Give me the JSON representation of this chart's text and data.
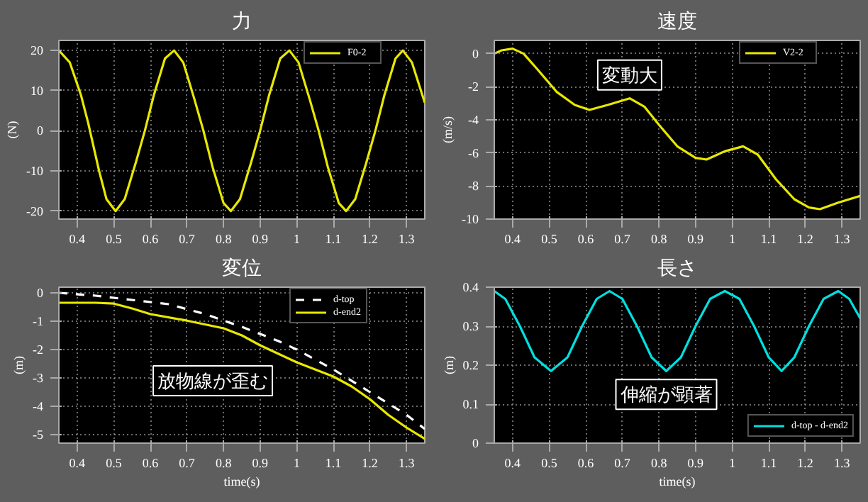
{
  "chart_data": [
    {
      "type": "line",
      "title": "力",
      "ylabel": "(N)",
      "xlim": [
        0.35,
        1.35
      ],
      "xticks": [
        0.4,
        0.5,
        0.6,
        0.7,
        0.8,
        0.9,
        1,
        1.1,
        1.2,
        1.3
      ],
      "ylim": [
        -22,
        22.5
      ],
      "yticks": [
        -20,
        -10,
        0,
        10,
        20
      ],
      "grid": true,
      "legend": "top right",
      "tick_labels": true,
      "series": [
        {
          "name": "F0-2",
          "color": "#e8e800",
          "x": [
            0.35,
            0.38,
            0.41,
            0.43,
            0.46,
            0.48,
            0.505,
            0.53,
            0.56,
            0.585,
            0.61,
            0.64,
            0.665,
            0.69,
            0.72,
            0.745,
            0.77,
            0.8,
            0.82,
            0.845,
            0.875,
            0.9,
            0.925,
            0.955,
            0.98,
            1.005,
            1.035,
            1.06,
            1.085,
            1.115,
            1.135,
            1.16,
            1.19,
            1.215,
            1.24,
            1.27,
            1.29,
            1.315,
            1.35
          ],
          "values": [
            20,
            17,
            9,
            2,
            -10,
            -17,
            -20,
            -17,
            -8,
            0,
            9,
            18,
            20,
            17,
            8,
            0,
            -9,
            -18,
            -20,
            -17,
            -8,
            0,
            9,
            18,
            20,
            17,
            8,
            0,
            -9,
            -18,
            -20,
            -17,
            -8,
            0,
            9,
            18,
            20,
            17,
            7
          ]
        }
      ]
    },
    {
      "type": "line",
      "title": "速度",
      "ylabel": "(m/s)",
      "xlim": [
        0.35,
        1.35
      ],
      "xticks": [
        0.4,
        0.5,
        0.6,
        0.7,
        0.8,
        0.9,
        1,
        1.1,
        1.2,
        1.3
      ],
      "ylim": [
        -10,
        0.8
      ],
      "yticks": [
        -10,
        -8,
        -6,
        -4,
        -2,
        0
      ],
      "grid": true,
      "legend": "top right",
      "annotations": [
        {
          "text": "変動大",
          "x": 0.72,
          "y": -2.7
        }
      ],
      "series": [
        {
          "name": "V2-2",
          "color": "#e8e800",
          "x": [
            0.35,
            0.37,
            0.4,
            0.43,
            0.47,
            0.52,
            0.57,
            0.61,
            0.66,
            0.72,
            0.76,
            0.8,
            0.85,
            0.9,
            0.93,
            0.98,
            1.03,
            1.07,
            1.12,
            1.17,
            1.21,
            1.24,
            1.29,
            1.35
          ],
          "values": [
            0,
            0.2,
            0.3,
            0,
            -1,
            -2.3,
            -3.1,
            -3.4,
            -3.1,
            -2.7,
            -3.2,
            -4.3,
            -5.6,
            -6.3,
            -6.4,
            -5.9,
            -5.6,
            -6.1,
            -7.6,
            -8.8,
            -9.3,
            -9.4,
            -9.0,
            -8.6
          ]
        }
      ]
    },
    {
      "type": "line",
      "title": "変位",
      "ylabel": "(m)",
      "xlabel": "time(s)",
      "xlim": [
        0.35,
        1.35
      ],
      "xticks": [
        0.4,
        0.5,
        0.6,
        0.7,
        0.8,
        0.9,
        1,
        1.1,
        1.2,
        1.3
      ],
      "ylim": [
        -5.3,
        0.2
      ],
      "yticks": [
        -5,
        -4,
        -3,
        -2,
        -1,
        0
      ],
      "grid": true,
      "legend": "top right",
      "annotations": [
        {
          "text": "放物線が歪む",
          "x": 0.98,
          "y": -2.4
        }
      ],
      "series": [
        {
          "name": "d-top",
          "color": "#ffffff",
          "line_style": "dashed",
          "x": [
            0.35,
            0.45,
            0.55,
            0.65,
            0.75,
            0.85,
            0.95,
            1.0,
            1.1,
            1.2,
            1.3,
            1.35
          ],
          "values": [
            0,
            -0.1,
            -0.25,
            -0.4,
            -0.75,
            -1.2,
            -1.7,
            -2.0,
            -2.7,
            -3.5,
            -4.3,
            -4.8
          ]
        },
        {
          "name": "d-end2",
          "color": "#e8e800",
          "line_style": "solid",
          "x": [
            0.35,
            0.45,
            0.5,
            0.55,
            0.6,
            0.7,
            0.8,
            0.85,
            0.9,
            0.95,
            1.0,
            1.05,
            1.1,
            1.15,
            1.2,
            1.25,
            1.3,
            1.35
          ],
          "values": [
            -0.35,
            -0.35,
            -0.38,
            -0.55,
            -0.75,
            -0.98,
            -1.25,
            -1.5,
            -1.85,
            -2.15,
            -2.45,
            -2.7,
            -2.95,
            -3.3,
            -3.75,
            -4.3,
            -4.75,
            -5.15
          ]
        }
      ]
    },
    {
      "type": "line",
      "title": "長さ",
      "ylabel": "(m)",
      "xlabel": "time(s)",
      "xlim": [
        0.35,
        1.35
      ],
      "xticks": [
        0.4,
        0.5,
        0.6,
        0.7,
        0.8,
        0.9,
        1,
        1.1,
        1.2,
        1.3
      ],
      "ylim": [
        0,
        0.4
      ],
      "yticks": [
        0,
        0.1,
        0.2,
        0.3,
        0.4
      ],
      "grid": true,
      "legend": "bottom right",
      "annotations": [
        {
          "text": "伸縮が顕著",
          "x": 0.82,
          "y": 0.185
        }
      ],
      "series": [
        {
          "name": "d-top - d-end2",
          "color": "#00e0e0",
          "x": [
            0.35,
            0.38,
            0.42,
            0.46,
            0.505,
            0.55,
            0.59,
            0.63,
            0.665,
            0.7,
            0.74,
            0.78,
            0.82,
            0.86,
            0.9,
            0.94,
            0.98,
            1.02,
            1.06,
            1.1,
            1.135,
            1.17,
            1.21,
            1.25,
            1.29,
            1.32,
            1.35
          ],
          "values": [
            0.39,
            0.37,
            0.3,
            0.22,
            0.185,
            0.22,
            0.3,
            0.37,
            0.39,
            0.37,
            0.3,
            0.22,
            0.185,
            0.22,
            0.3,
            0.37,
            0.39,
            0.37,
            0.3,
            0.22,
            0.185,
            0.22,
            0.3,
            0.37,
            0.39,
            0.37,
            0.32
          ]
        }
      ]
    }
  ]
}
